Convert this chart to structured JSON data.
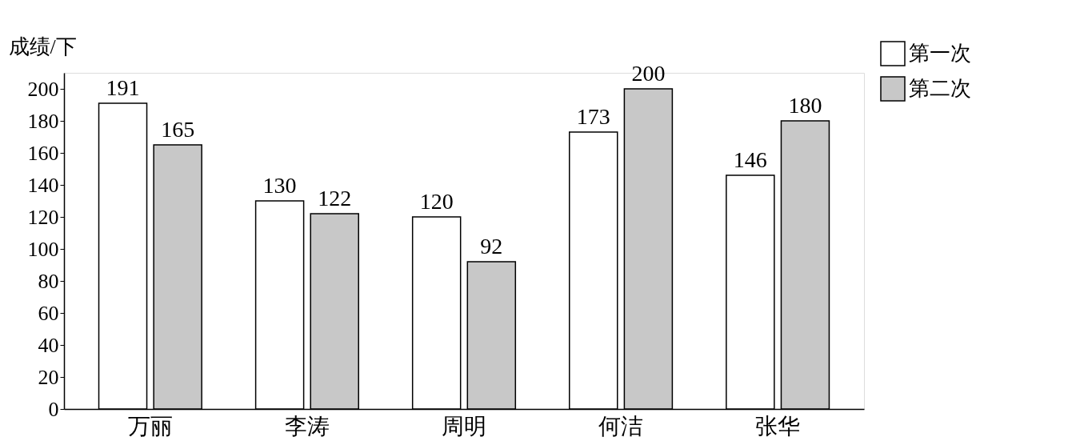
{
  "chart_data": {
    "type": "bar",
    "ylabel": "成绩/下",
    "categories": [
      "万丽",
      "李涛",
      "周明",
      "何洁",
      "张华"
    ],
    "series": [
      {
        "name": "第一次",
        "color": "#ffffff",
        "values": [
          191,
          130,
          120,
          173,
          146
        ]
      },
      {
        "name": "第二次",
        "color": "#c8c8c8",
        "values": [
          165,
          122,
          92,
          200,
          180
        ]
      }
    ],
    "ylim": [
      0,
      210
    ],
    "yticks": [
      0,
      20,
      40,
      60,
      80,
      100,
      120,
      140,
      160,
      180,
      200
    ],
    "grid": false,
    "legend": "top right",
    "data_labels": true
  }
}
